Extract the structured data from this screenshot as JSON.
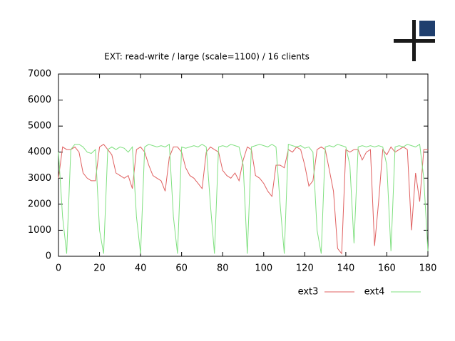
{
  "chart_data": {
    "type": "line",
    "title": "EXT: read-write / large (scale=1100) / 16 clients",
    "x": [
      0,
      2,
      4,
      6,
      8,
      10,
      12,
      14,
      16,
      18,
      20,
      22,
      24,
      26,
      28,
      30,
      32,
      34,
      36,
      38,
      40,
      42,
      44,
      46,
      48,
      50,
      52,
      54,
      56,
      58,
      60,
      62,
      64,
      66,
      68,
      70,
      72,
      74,
      76,
      78,
      80,
      82,
      84,
      86,
      88,
      90,
      92,
      94,
      96,
      98,
      100,
      102,
      104,
      106,
      108,
      110,
      112,
      114,
      116,
      118,
      120,
      122,
      124,
      126,
      128,
      130,
      132,
      134,
      136,
      138,
      140,
      142,
      144,
      146,
      148,
      150,
      152,
      154,
      156,
      158,
      160,
      162,
      164,
      166,
      168,
      170,
      172,
      174,
      176,
      178,
      180
    ],
    "series": [
      {
        "name": "ext3",
        "color": "#e06060",
        "values": [
          3000,
          4200,
          4100,
          4100,
          4200,
          4000,
          3200,
          3000,
          2900,
          2900,
          4200,
          4300,
          4100,
          3900,
          3200,
          3100,
          3000,
          3100,
          2600,
          4100,
          4200,
          4000,
          3500,
          3100,
          3000,
          2900,
          2500,
          3800,
          4200,
          4200,
          4000,
          3400,
          3100,
          3000,
          2800,
          2600,
          4000,
          4200,
          4100,
          4000,
          3300,
          3100,
          3000,
          3200,
          2900,
          3700,
          4200,
          4100,
          3100,
          3000,
          2800,
          2500,
          2300,
          3500,
          3500,
          3400,
          4100,
          4000,
          4200,
          4100,
          3500,
          2700,
          2900,
          4100,
          4200,
          4100,
          3300,
          2500,
          300,
          100,
          4100,
          4000,
          4100,
          4100,
          3700,
          4000,
          4100,
          400,
          2100,
          4100,
          3900,
          4200,
          4000,
          4100,
          4200,
          4100,
          1000,
          3200,
          2100,
          4100,
          4100
        ]
      },
      {
        "name": "ext4",
        "color": "#80e080",
        "values": [
          4000,
          1500,
          100,
          4100,
          4300,
          4300,
          4200,
          4000,
          3950,
          4100,
          1000,
          100,
          4100,
          4200,
          4100,
          4200,
          4150,
          4000,
          4200,
          1500,
          100,
          4200,
          4300,
          4250,
          4200,
          4250,
          4200,
          4300,
          1500,
          100,
          4200,
          4150,
          4200,
          4250,
          4200,
          4300,
          4200,
          2000,
          100,
          4200,
          4250,
          4200,
          4300,
          4250,
          4200,
          3500,
          100,
          4200,
          4250,
          4300,
          4250,
          4200,
          4300,
          4200,
          2000,
          100,
          4300,
          4250,
          4200,
          4250,
          4150,
          4200,
          4000,
          1000,
          100,
          4200,
          4250,
          4200,
          4300,
          4250,
          4200,
          3500,
          500,
          4200,
          4250,
          4200,
          4250,
          4200,
          4250,
          4200,
          3500,
          200,
          4200,
          4250,
          4200,
          4300,
          4250,
          4200,
          4300,
          3000,
          200
        ]
      }
    ],
    "xlim": [
      0,
      180
    ],
    "xticks": [
      0,
      20,
      40,
      60,
      80,
      100,
      120,
      140,
      160,
      180
    ],
    "ylim": [
      0,
      7000
    ],
    "yticks": [
      0,
      1000,
      2000,
      3000,
      4000,
      5000,
      6000,
      7000
    ],
    "grid": false,
    "legend": "bottom-right"
  }
}
